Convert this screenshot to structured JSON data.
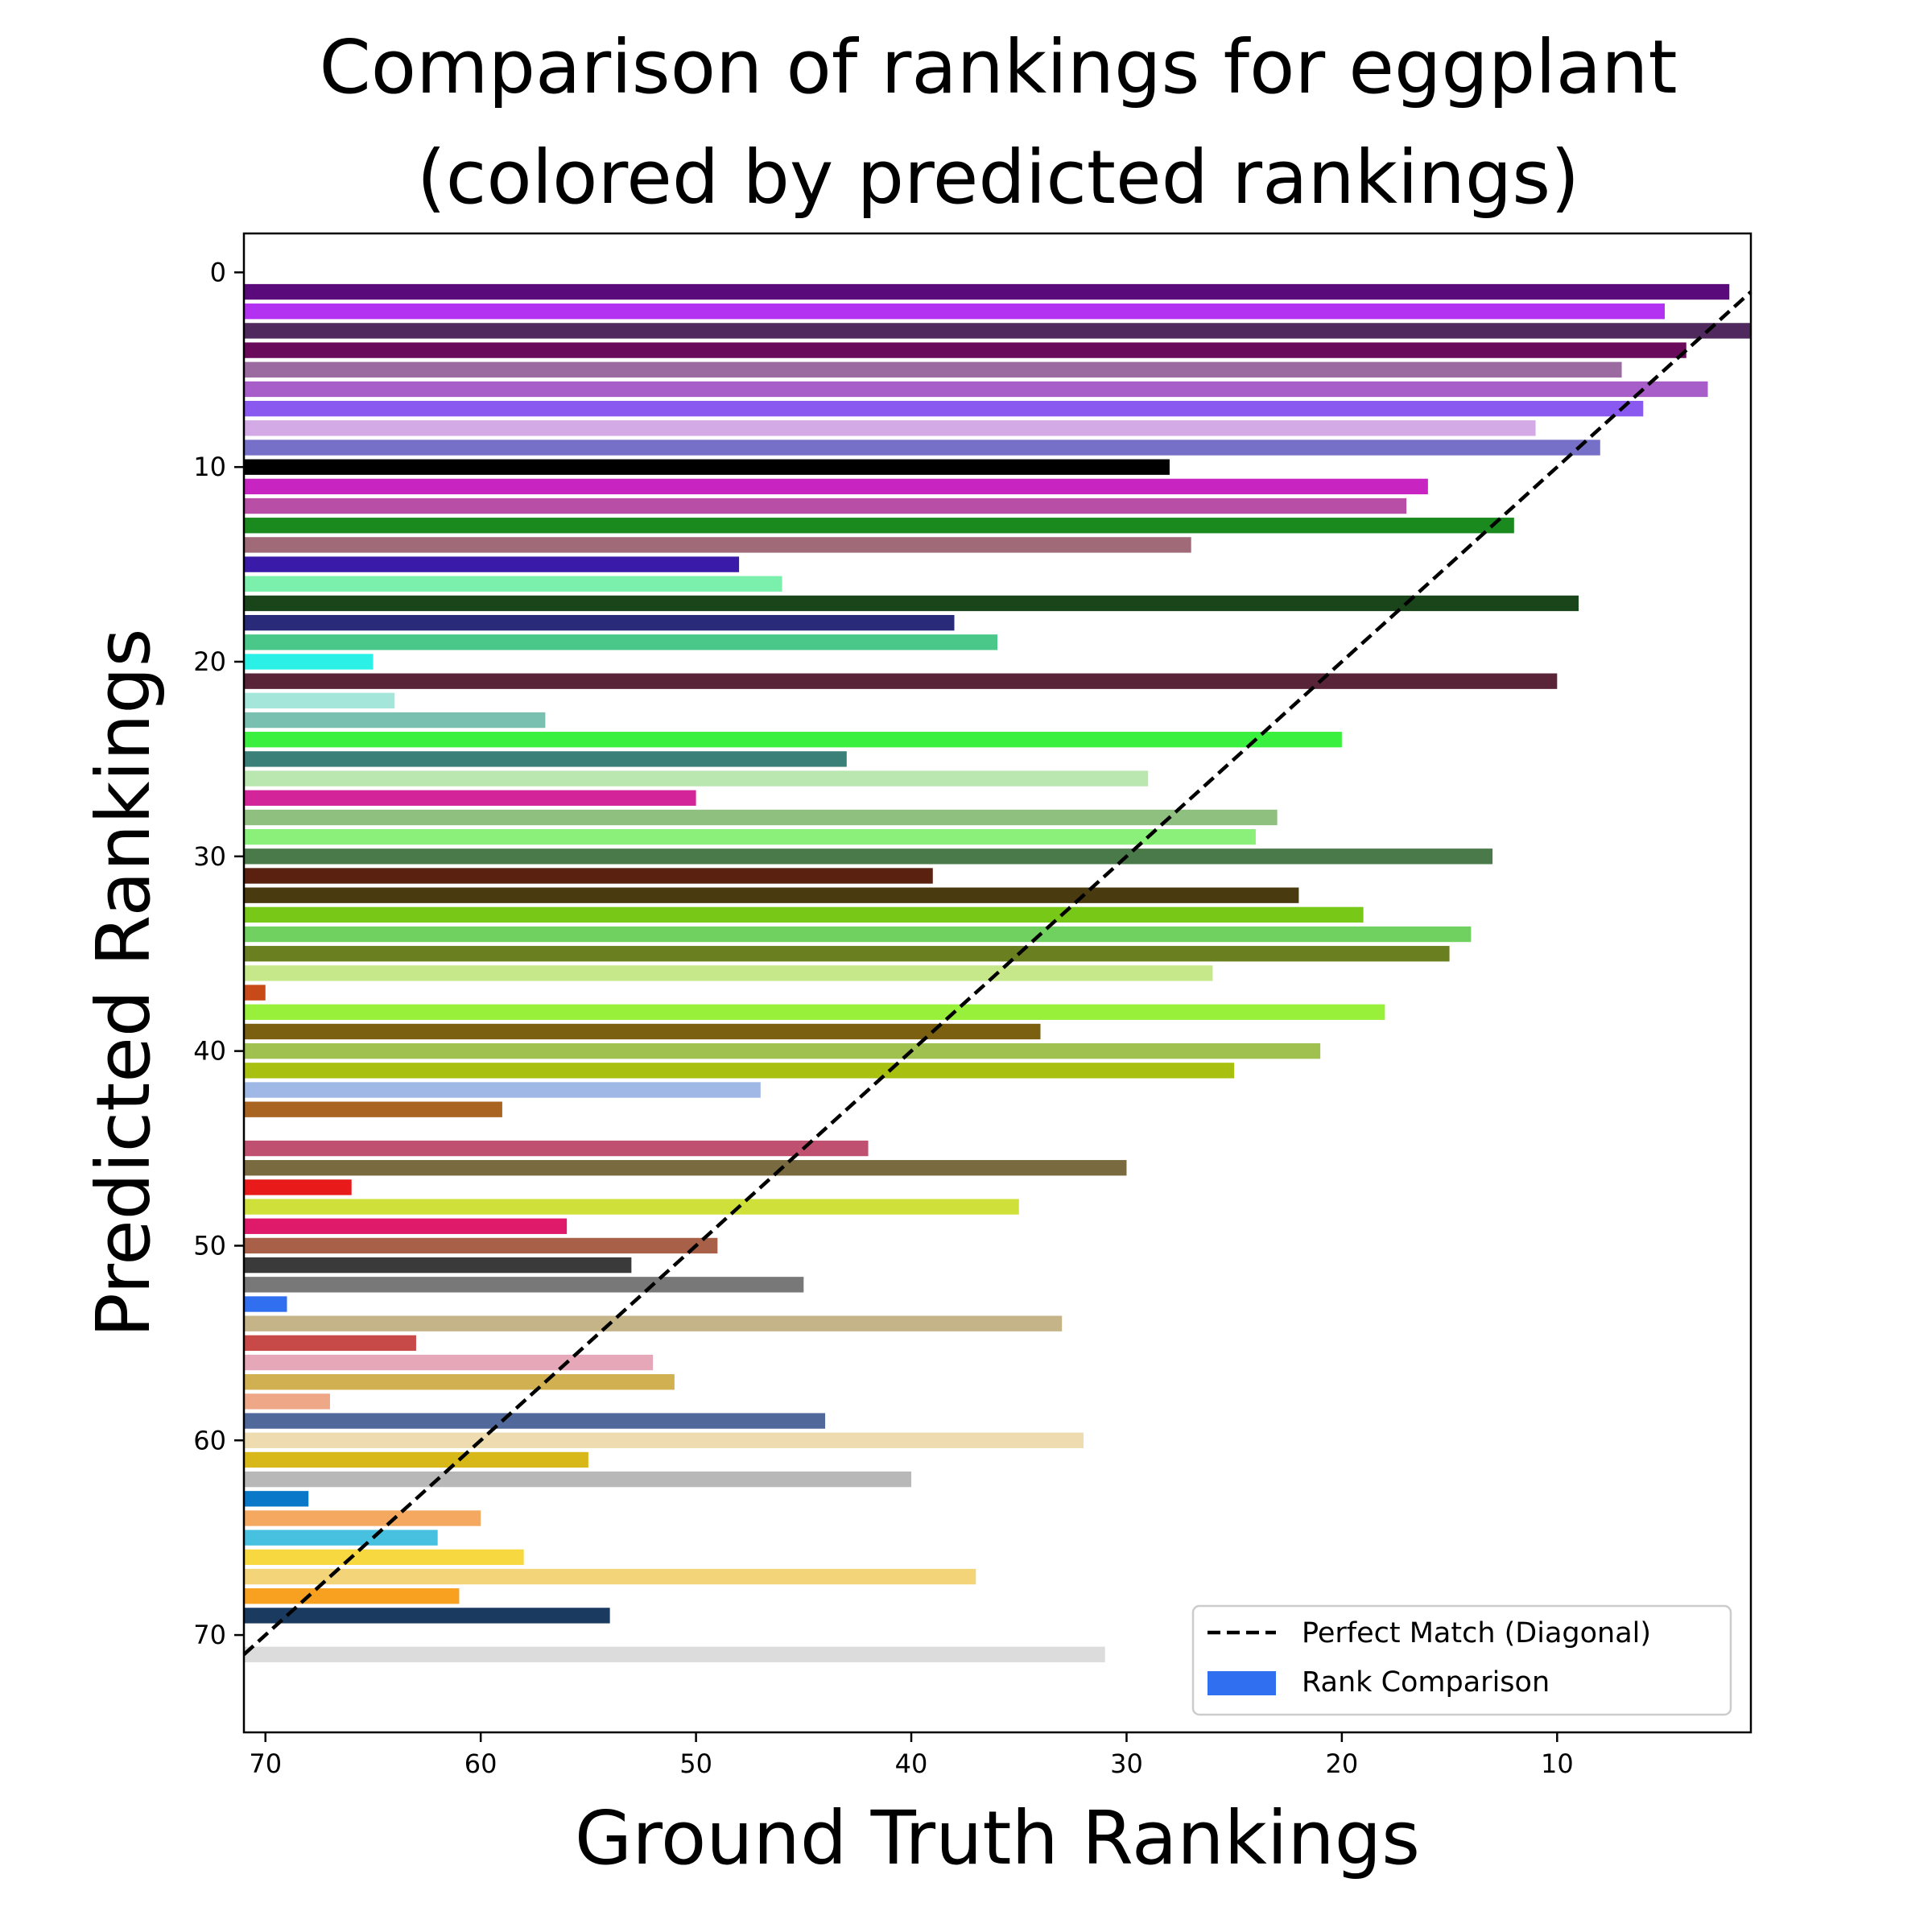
{
  "chart_data": {
    "type": "bar",
    "orientation": "horizontal",
    "title_line1": "Comparison of rankings for eggplant",
    "title_line2": "(colored by predicted rankings)",
    "xlabel": "Ground Truth Rankings",
    "ylabel": "Predicted Rankings",
    "xlim": [
      71,
      1
    ],
    "ylim": [
      75,
      -2
    ],
    "x_ticks": [
      70,
      60,
      50,
      40,
      30,
      20,
      10
    ],
    "y_ticks": [
      0,
      10,
      20,
      30,
      40,
      50,
      60,
      70
    ],
    "diagonal": {
      "from": [
        71,
        71
      ],
      "to": [
        1,
        1
      ],
      "style": "dashed",
      "color": "#000000"
    },
    "legend": {
      "position": "lower-right",
      "entries": [
        {
          "label": "Perfect Match (Diagonal)",
          "kind": "dashed-line",
          "color": "#000000"
        },
        {
          "label": "Rank Comparison",
          "kind": "patch",
          "color": "#2f6ff0"
        }
      ]
    },
    "grid": false,
    "bars": [
      {
        "predicted": 1,
        "ground_truth": 2,
        "color": "#5a0a7a"
      },
      {
        "predicted": 2,
        "ground_truth": 5,
        "color": "#b331f0"
      },
      {
        "predicted": 3,
        "ground_truth": 1,
        "color": "#502a5e"
      },
      {
        "predicted": 4,
        "ground_truth": 4,
        "color": "#6a0a5a"
      },
      {
        "predicted": 5,
        "ground_truth": 7,
        "color": "#9a6aa0"
      },
      {
        "predicted": 6,
        "ground_truth": 3,
        "color": "#a75ec8"
      },
      {
        "predicted": 7,
        "ground_truth": 6,
        "color": "#8a5af0"
      },
      {
        "predicted": 8,
        "ground_truth": 11,
        "color": "#d3a9e6"
      },
      {
        "predicted": 9,
        "ground_truth": 8,
        "color": "#7670c8"
      },
      {
        "predicted": 10,
        "ground_truth": 28,
        "color": "#000000"
      },
      {
        "predicted": 11,
        "ground_truth": 16,
        "color": "#c724c2"
      },
      {
        "predicted": 12,
        "ground_truth": 17,
        "color": "#b84ea6"
      },
      {
        "predicted": 13,
        "ground_truth": 12,
        "color": "#1a8a1e"
      },
      {
        "predicted": 14,
        "ground_truth": 27,
        "color": "#a06a78"
      },
      {
        "predicted": 15,
        "ground_truth": 48,
        "color": "#3a1aa8"
      },
      {
        "predicted": 16,
        "ground_truth": 46,
        "color": "#7af0ac"
      },
      {
        "predicted": 17,
        "ground_truth": 9,
        "color": "#1a451a"
      },
      {
        "predicted": 18,
        "ground_truth": 38,
        "color": "#2a2a7a"
      },
      {
        "predicted": 19,
        "ground_truth": 36,
        "color": "#4ac88a"
      },
      {
        "predicted": 20,
        "ground_truth": 65,
        "color": "#2af0e6"
      },
      {
        "predicted": 21,
        "ground_truth": 10,
        "color": "#5a2438"
      },
      {
        "predicted": 22,
        "ground_truth": 64,
        "color": "#a4e6da"
      },
      {
        "predicted": 23,
        "ground_truth": 57,
        "color": "#7ac0b0"
      },
      {
        "predicted": 24,
        "ground_truth": 20,
        "color": "#3af03e"
      },
      {
        "predicted": 25,
        "ground_truth": 43,
        "color": "#3a8078"
      },
      {
        "predicted": 26,
        "ground_truth": 29,
        "color": "#bae6b0"
      },
      {
        "predicted": 27,
        "ground_truth": 50,
        "color": "#d4249a"
      },
      {
        "predicted": 28,
        "ground_truth": 23,
        "color": "#90c080"
      },
      {
        "predicted": 29,
        "ground_truth": 24,
        "color": "#8af07a"
      },
      {
        "predicted": 30,
        "ground_truth": 13,
        "color": "#4a7a4a"
      },
      {
        "predicted": 31,
        "ground_truth": 39,
        "color": "#5a2010"
      },
      {
        "predicted": 32,
        "ground_truth": 22,
        "color": "#4a3a10"
      },
      {
        "predicted": 33,
        "ground_truth": 19,
        "color": "#78c818"
      },
      {
        "predicted": 34,
        "ground_truth": 14,
        "color": "#70d060"
      },
      {
        "predicted": 35,
        "ground_truth": 15,
        "color": "#6a8020"
      },
      {
        "predicted": 36,
        "ground_truth": 26,
        "color": "#c6e88a"
      },
      {
        "predicted": 37,
        "ground_truth": 70,
        "color": "#c84a18"
      },
      {
        "predicted": 38,
        "ground_truth": 18,
        "color": "#98f03a"
      },
      {
        "predicted": 39,
        "ground_truth": 34,
        "color": "#7a6010"
      },
      {
        "predicted": 40,
        "ground_truth": 21,
        "color": "#a0c050"
      },
      {
        "predicted": 41,
        "ground_truth": 25,
        "color": "#a8c010"
      },
      {
        "predicted": 42,
        "ground_truth": 47,
        "color": "#a0b8e6"
      },
      {
        "predicted": 43,
        "ground_truth": 59,
        "color": "#a86420"
      },
      {
        "predicted": 45,
        "ground_truth": 42,
        "color": "#c05070"
      },
      {
        "predicted": 46,
        "ground_truth": 30,
        "color": "#7a6a40"
      },
      {
        "predicted": 47,
        "ground_truth": 66,
        "color": "#e81a1a"
      },
      {
        "predicted": 48,
        "ground_truth": 35,
        "color": "#d0e03a"
      },
      {
        "predicted": 49,
        "ground_truth": 56,
        "color": "#e01a6a"
      },
      {
        "predicted": 50,
        "ground_truth": 49,
        "color": "#a86048"
      },
      {
        "predicted": 51,
        "ground_truth": 53,
        "color": "#3a3a3a"
      },
      {
        "predicted": 52,
        "ground_truth": 45,
        "color": "#787878"
      },
      {
        "predicted": 53,
        "ground_truth": 69,
        "color": "#2f6ff0"
      },
      {
        "predicted": 54,
        "ground_truth": 33,
        "color": "#c4b488"
      },
      {
        "predicted": 55,
        "ground_truth": 63,
        "color": "#c84a48"
      },
      {
        "predicted": 56,
        "ground_truth": 52,
        "color": "#e6a8b8"
      },
      {
        "predicted": 57,
        "ground_truth": 51,
        "color": "#d0b050"
      },
      {
        "predicted": 58,
        "ground_truth": 67,
        "color": "#eea888"
      },
      {
        "predicted": 59,
        "ground_truth": 44,
        "color": "#50689a"
      },
      {
        "predicted": 60,
        "ground_truth": 32,
        "color": "#eedcb0"
      },
      {
        "predicted": 61,
        "ground_truth": 55,
        "color": "#d8b818"
      },
      {
        "predicted": 62,
        "ground_truth": 40,
        "color": "#b8b8b8"
      },
      {
        "predicted": 63,
        "ground_truth": 68,
        "color": "#0a78c8"
      },
      {
        "predicted": 64,
        "ground_truth": 60,
        "color": "#f4a860"
      },
      {
        "predicted": 65,
        "ground_truth": 62,
        "color": "#48c0e0"
      },
      {
        "predicted": 66,
        "ground_truth": 58,
        "color": "#f8d840"
      },
      {
        "predicted": 67,
        "ground_truth": 37,
        "color": "#f4d478"
      },
      {
        "predicted": 68,
        "ground_truth": 61,
        "color": "#f8a020"
      },
      {
        "predicted": 69,
        "ground_truth": 54,
        "color": "#1a3a60"
      },
      {
        "predicted": 71,
        "ground_truth": 31,
        "color": "#dcdcdc"
      }
    ]
  }
}
